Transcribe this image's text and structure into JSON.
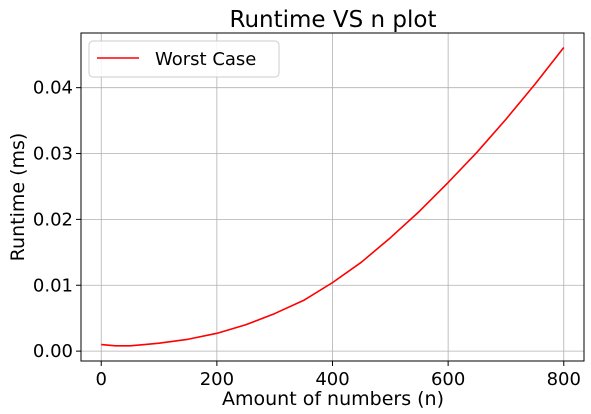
{
  "chart_data": {
    "type": "line",
    "title": "Runtime VS n plot",
    "xlabel": "Amount of numbers (n)",
    "ylabel": "Runtime (ms)",
    "xlim": [
      -35,
      835
    ],
    "ylim": [
      -0.0015,
      0.0483
    ],
    "xticks": [
      0,
      200,
      400,
      600,
      800
    ],
    "xtick_labels": [
      "0",
      "200",
      "400",
      "600",
      "800"
    ],
    "yticks": [
      0.0,
      0.01,
      0.02,
      0.03,
      0.04
    ],
    "ytick_labels": [
      "0.00",
      "0.01",
      "0.02",
      "0.03",
      "0.04"
    ],
    "grid": true,
    "legend_position": "upper-left",
    "series": [
      {
        "name": "Worst Case",
        "color": "#ff0000",
        "x": [
          0,
          25,
          50,
          75,
          100,
          150,
          200,
          250,
          300,
          350,
          400,
          450,
          500,
          550,
          600,
          650,
          700,
          750,
          800
        ],
        "y": [
          0.001,
          0.0008,
          0.0008,
          0.001,
          0.0012,
          0.0018,
          0.0027,
          0.004,
          0.0057,
          0.0077,
          0.0104,
          0.0135,
          0.0172,
          0.0212,
          0.0256,
          0.0302,
          0.0352,
          0.0405,
          0.0461
        ]
      }
    ]
  }
}
